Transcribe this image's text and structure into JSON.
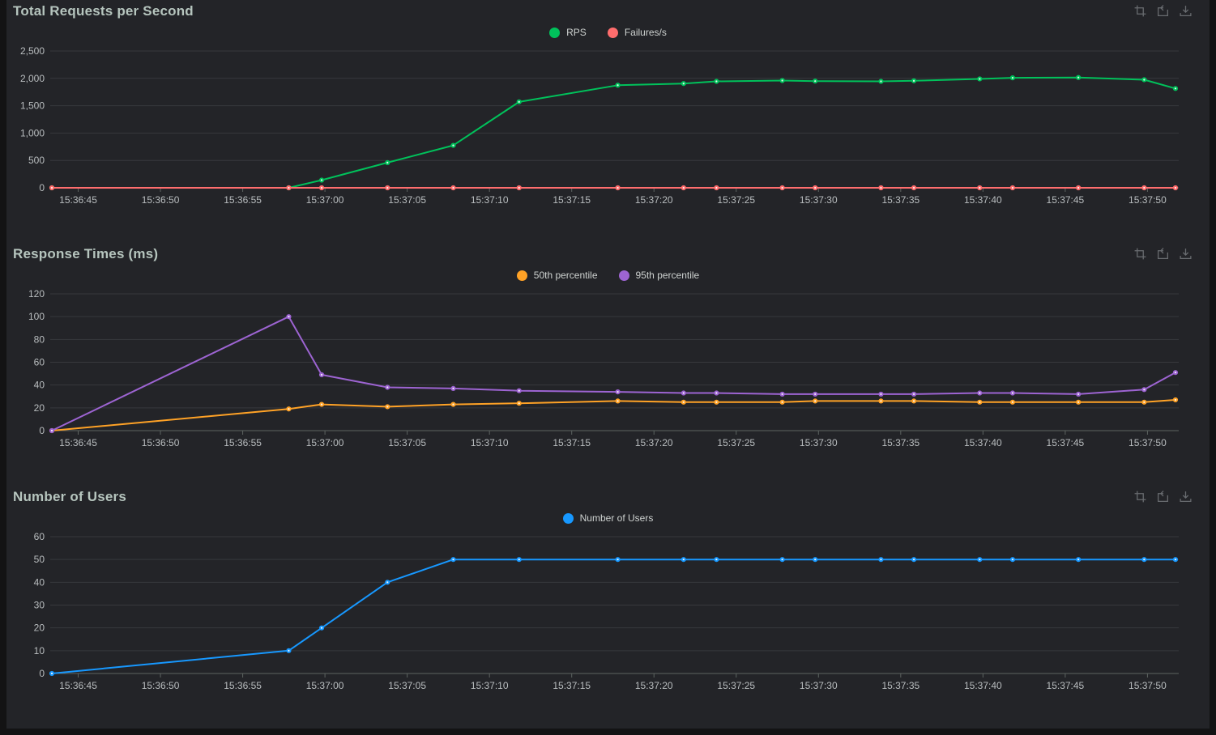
{
  "page": {
    "background": "#131314",
    "panel_background": "#232428",
    "title_color": "#b6c5be",
    "axis_label_color": "#b9bdbf",
    "gridline_color": "#37383d",
    "axis_line_color": "#5d6461"
  },
  "toolbox": {
    "icons": [
      "data-zoom",
      "restore",
      "save-as-image"
    ]
  },
  "chart_data": [
    {
      "type": "line",
      "title": "Total Requests per Second",
      "legend_position": "top-center",
      "grid": "horizontal-only",
      "x_tick_labels": [
        "15:36:45",
        "15:36:50",
        "15:36:55",
        "15:37:00",
        "15:37:05",
        "15:37:10",
        "15:37:15",
        "15:37:20",
        "15:37:25",
        "15:37:30",
        "15:37:35",
        "15:37:40",
        "15:37:45",
        "15:37:50"
      ],
      "x_tick_seconds": [
        45,
        50,
        55,
        60,
        65,
        70,
        75,
        80,
        85,
        90,
        95,
        100,
        105,
        110
      ],
      "x_domain_seconds": [
        43.3,
        111.9
      ],
      "x_times": [
        "15:36:43",
        "15:36:58",
        "15:37:00",
        "15:37:04",
        "15:37:08",
        "15:37:12",
        "15:37:18",
        "15:37:22",
        "15:37:24",
        "15:37:28",
        "15:37:30",
        "15:37:34",
        "15:37:36",
        "15:37:40",
        "15:37:42",
        "15:37:46",
        "15:37:50",
        "15:37:52"
      ],
      "x_seconds": [
        43.4,
        57.8,
        59.8,
        63.8,
        67.8,
        71.8,
        77.8,
        81.8,
        83.8,
        87.8,
        89.8,
        93.8,
        95.8,
        99.8,
        101.8,
        105.8,
        109.8,
        111.7
      ],
      "y_ticks": [
        0,
        500,
        1000,
        1500,
        2000,
        2500
      ],
      "y_tick_labels": [
        "0",
        "500",
        "1,000",
        "1,500",
        "2,000",
        "2,500"
      ],
      "y_max": 2500,
      "series": [
        {
          "name": "RPS",
          "color": "#00c25b",
          "values": [
            0,
            0,
            140,
            460,
            775,
            1570,
            1875,
            1905,
            1945,
            1960,
            1950,
            1945,
            1955,
            1990,
            2010,
            2015,
            1975,
            1815
          ]
        },
        {
          "name": "Failures/s",
          "color": "#ff6d6d",
          "values": [
            0,
            0,
            0,
            0,
            0,
            0,
            0,
            0,
            0,
            0,
            0,
            0,
            0,
            0,
            0,
            0,
            0,
            0
          ]
        }
      ]
    },
    {
      "type": "line",
      "title": "Response Times (ms)",
      "legend_position": "top-center",
      "grid": "horizontal-only",
      "x_tick_labels": [
        "15:36:45",
        "15:36:50",
        "15:36:55",
        "15:37:00",
        "15:37:05",
        "15:37:10",
        "15:37:15",
        "15:37:20",
        "15:37:25",
        "15:37:30",
        "15:37:35",
        "15:37:40",
        "15:37:45",
        "15:37:50"
      ],
      "x_tick_seconds": [
        45,
        50,
        55,
        60,
        65,
        70,
        75,
        80,
        85,
        90,
        95,
        100,
        105,
        110
      ],
      "x_domain_seconds": [
        43.3,
        111.9
      ],
      "x_times": [
        "15:36:43",
        "15:36:58",
        "15:37:00",
        "15:37:04",
        "15:37:08",
        "15:37:12",
        "15:37:18",
        "15:37:22",
        "15:37:24",
        "15:37:28",
        "15:37:30",
        "15:37:34",
        "15:37:36",
        "15:37:40",
        "15:37:42",
        "15:37:46",
        "15:37:50",
        "15:37:52"
      ],
      "x_seconds": [
        43.4,
        57.8,
        59.8,
        63.8,
        67.8,
        71.8,
        77.8,
        81.8,
        83.8,
        87.8,
        89.8,
        93.8,
        95.8,
        99.8,
        101.8,
        105.8,
        109.8,
        111.7
      ],
      "y_ticks": [
        0,
        20,
        40,
        60,
        80,
        100,
        120
      ],
      "y_tick_labels": [
        "0",
        "20",
        "40",
        "60",
        "80",
        "100",
        "120"
      ],
      "y_max": 120,
      "series": [
        {
          "name": "50th percentile",
          "color": "#ffa226",
          "values": [
            0,
            19,
            23,
            21,
            23,
            24,
            26,
            25,
            25,
            25,
            26,
            26,
            26,
            25,
            25,
            25,
            25,
            27
          ]
        },
        {
          "name": "95th percentile",
          "color": "#9d64d2",
          "values": [
            0,
            100,
            49,
            38,
            37,
            35,
            34,
            33,
            33,
            32,
            32,
            32,
            32,
            33,
            33,
            32,
            36,
            51
          ]
        }
      ]
    },
    {
      "type": "line",
      "title": "Number of Users",
      "legend_position": "top-center",
      "grid": "horizontal-only",
      "x_tick_labels": [
        "15:36:45",
        "15:36:50",
        "15:36:55",
        "15:37:00",
        "15:37:05",
        "15:37:10",
        "15:37:15",
        "15:37:20",
        "15:37:25",
        "15:37:30",
        "15:37:35",
        "15:37:40",
        "15:37:45",
        "15:37:50"
      ],
      "x_tick_seconds": [
        45,
        50,
        55,
        60,
        65,
        70,
        75,
        80,
        85,
        90,
        95,
        100,
        105,
        110
      ],
      "x_domain_seconds": [
        43.3,
        111.9
      ],
      "x_times": [
        "15:36:43",
        "15:36:58",
        "15:37:00",
        "15:37:04",
        "15:37:08",
        "15:37:12",
        "15:37:18",
        "15:37:22",
        "15:37:24",
        "15:37:28",
        "15:37:30",
        "15:37:34",
        "15:37:36",
        "15:37:40",
        "15:37:42",
        "15:37:46",
        "15:37:50",
        "15:37:52"
      ],
      "x_seconds": [
        43.4,
        57.8,
        59.8,
        63.8,
        67.8,
        71.8,
        77.8,
        81.8,
        83.8,
        87.8,
        89.8,
        93.8,
        95.8,
        99.8,
        101.8,
        105.8,
        109.8,
        111.7
      ],
      "y_ticks": [
        0,
        10,
        20,
        30,
        40,
        50,
        60
      ],
      "y_tick_labels": [
        "0",
        "10",
        "20",
        "30",
        "40",
        "50",
        "60"
      ],
      "y_max": 60,
      "series": [
        {
          "name": "Number of Users",
          "color": "#1798ff",
          "values": [
            0,
            10,
            20,
            40,
            50,
            50,
            50,
            50,
            50,
            50,
            50,
            50,
            50,
            50,
            50,
            50,
            50,
            50
          ]
        }
      ]
    }
  ]
}
